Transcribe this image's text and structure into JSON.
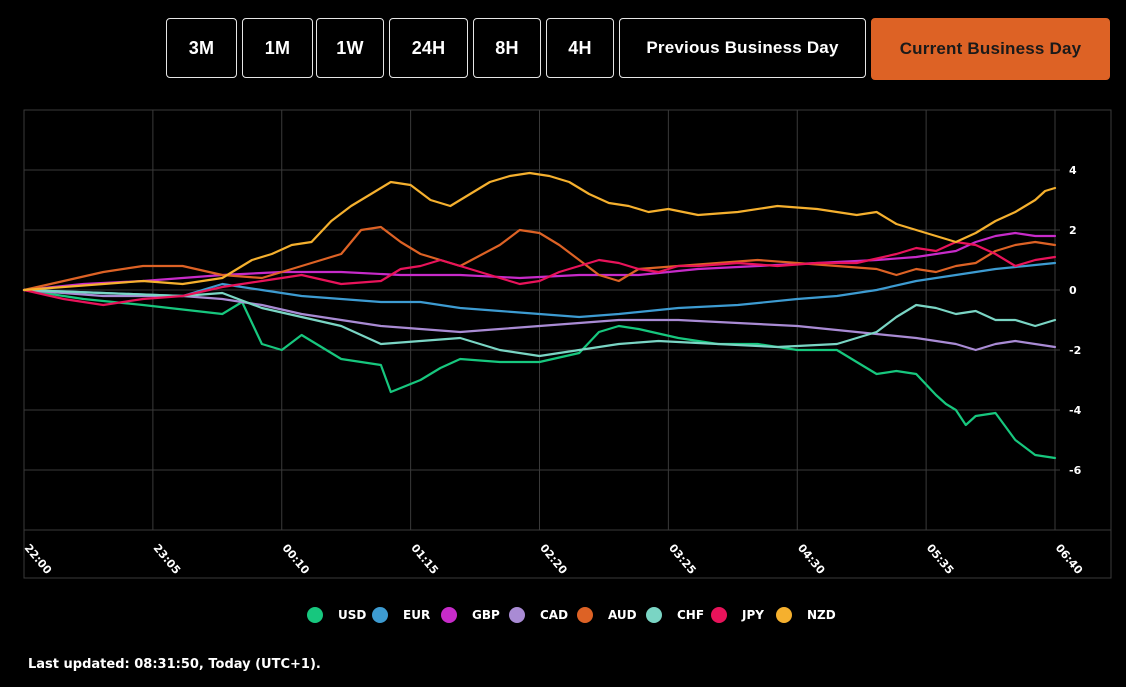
{
  "toolbar": {
    "buttons": [
      {
        "label": "3M",
        "active": false
      },
      {
        "label": "1M",
        "active": false
      },
      {
        "label": "1W",
        "active": false
      },
      {
        "label": "24H",
        "active": false
      },
      {
        "label": "8H",
        "active": false
      },
      {
        "label": "4H",
        "active": false
      },
      {
        "label": "Previous Business Day",
        "active": false
      },
      {
        "label": "Current Business Day",
        "active": true
      }
    ]
  },
  "footer": {
    "last_updated": "Last updated: 08:31:50, Today (UTC+1)."
  },
  "colors": {
    "background": "#000000",
    "grid": "#3a3a3a",
    "active_button": "#dd6225"
  },
  "chart_data": {
    "type": "line",
    "title": "",
    "xlabel": "",
    "ylabel": "",
    "x_ticks": [
      "22:00",
      "23:05",
      "00:10",
      "01:15",
      "02:20",
      "03:25",
      "04:30",
      "05:35",
      "06:40"
    ],
    "x_range": [
      0,
      520
    ],
    "ylim": [
      -8,
      6
    ],
    "y_ticks": [
      4,
      2,
      0,
      -2,
      -4,
      -6
    ],
    "grid": true,
    "legend_position": "bottom",
    "series": [
      {
        "name": "USD",
        "color": "#17c77e",
        "points": [
          [
            0,
            0
          ],
          [
            30,
            -0.3
          ],
          [
            60,
            -0.5
          ],
          [
            100,
            -0.8
          ],
          [
            110,
            -0.4
          ],
          [
            120,
            -1.8
          ],
          [
            130,
            -2.0
          ],
          [
            140,
            -1.5
          ],
          [
            160,
            -2.3
          ],
          [
            170,
            -2.4
          ],
          [
            180,
            -2.5
          ],
          [
            185,
            -3.4
          ],
          [
            200,
            -3.0
          ],
          [
            210,
            -2.6
          ],
          [
            220,
            -2.3
          ],
          [
            240,
            -2.4
          ],
          [
            260,
            -2.4
          ],
          [
            280,
            -2.1
          ],
          [
            290,
            -1.4
          ],
          [
            300,
            -1.2
          ],
          [
            310,
            -1.3
          ],
          [
            330,
            -1.6
          ],
          [
            350,
            -1.8
          ],
          [
            370,
            -1.8
          ],
          [
            390,
            -2.0
          ],
          [
            410,
            -2.0
          ],
          [
            420,
            -2.4
          ],
          [
            430,
            -2.8
          ],
          [
            440,
            -2.7
          ],
          [
            450,
            -2.8
          ],
          [
            460,
            -3.5
          ],
          [
            465,
            -3.8
          ],
          [
            470,
            -4.0
          ],
          [
            475,
            -4.5
          ],
          [
            480,
            -4.2
          ],
          [
            490,
            -4.1
          ],
          [
            500,
            -5.0
          ],
          [
            510,
            -5.5
          ],
          [
            520,
            -5.6
          ]
        ]
      },
      {
        "name": "EUR",
        "color": "#3d9bd1",
        "points": [
          [
            0,
            0
          ],
          [
            40,
            -0.1
          ],
          [
            80,
            -0.2
          ],
          [
            100,
            0.2
          ],
          [
            120,
            0.0
          ],
          [
            140,
            -0.2
          ],
          [
            160,
            -0.3
          ],
          [
            180,
            -0.4
          ],
          [
            200,
            -0.4
          ],
          [
            220,
            -0.6
          ],
          [
            240,
            -0.7
          ],
          [
            260,
            -0.8
          ],
          [
            280,
            -0.9
          ],
          [
            300,
            -0.8
          ],
          [
            330,
            -0.6
          ],
          [
            360,
            -0.5
          ],
          [
            390,
            -0.3
          ],
          [
            410,
            -0.2
          ],
          [
            430,
            0.0
          ],
          [
            450,
            0.3
          ],
          [
            470,
            0.5
          ],
          [
            490,
            0.7
          ],
          [
            505,
            0.8
          ],
          [
            520,
            0.9
          ]
        ]
      },
      {
        "name": "GBP",
        "color": "#c72bc9",
        "points": [
          [
            0,
            0
          ],
          [
            30,
            0.2
          ],
          [
            60,
            0.3
          ],
          [
            100,
            0.5
          ],
          [
            130,
            0.6
          ],
          [
            160,
            0.6
          ],
          [
            190,
            0.5
          ],
          [
            220,
            0.5
          ],
          [
            250,
            0.4
          ],
          [
            280,
            0.5
          ],
          [
            310,
            0.5
          ],
          [
            340,
            0.7
          ],
          [
            370,
            0.8
          ],
          [
            400,
            0.9
          ],
          [
            430,
            1.0
          ],
          [
            450,
            1.1
          ],
          [
            470,
            1.3
          ],
          [
            480,
            1.6
          ],
          [
            490,
            1.8
          ],
          [
            500,
            1.9
          ],
          [
            510,
            1.8
          ],
          [
            520,
            1.8
          ]
        ]
      },
      {
        "name": "CAD",
        "color": "#a98bd4",
        "points": [
          [
            0,
            0
          ],
          [
            40,
            -0.2
          ],
          [
            80,
            -0.2
          ],
          [
            100,
            -0.3
          ],
          [
            120,
            -0.5
          ],
          [
            140,
            -0.8
          ],
          [
            160,
            -1.0
          ],
          [
            180,
            -1.2
          ],
          [
            200,
            -1.3
          ],
          [
            220,
            -1.4
          ],
          [
            240,
            -1.3
          ],
          [
            260,
            -1.2
          ],
          [
            280,
            -1.1
          ],
          [
            300,
            -1.0
          ],
          [
            330,
            -1.0
          ],
          [
            360,
            -1.1
          ],
          [
            390,
            -1.2
          ],
          [
            420,
            -1.4
          ],
          [
            450,
            -1.6
          ],
          [
            470,
            -1.8
          ],
          [
            480,
            -2.0
          ],
          [
            490,
            -1.8
          ],
          [
            500,
            -1.7
          ],
          [
            520,
            -1.9
          ]
        ]
      },
      {
        "name": "AUD",
        "color": "#dd6225",
        "points": [
          [
            0,
            0
          ],
          [
            20,
            0.3
          ],
          [
            40,
            0.6
          ],
          [
            60,
            0.8
          ],
          [
            80,
            0.8
          ],
          [
            100,
            0.5
          ],
          [
            120,
            0.4
          ],
          [
            140,
            0.8
          ],
          [
            160,
            1.2
          ],
          [
            170,
            2.0
          ],
          [
            180,
            2.1
          ],
          [
            190,
            1.6
          ],
          [
            200,
            1.2
          ],
          [
            220,
            0.8
          ],
          [
            240,
            1.5
          ],
          [
            250,
            2.0
          ],
          [
            260,
            1.9
          ],
          [
            270,
            1.5
          ],
          [
            280,
            1.0
          ],
          [
            290,
            0.5
          ],
          [
            300,
            0.3
          ],
          [
            310,
            0.7
          ],
          [
            330,
            0.8
          ],
          [
            350,
            0.9
          ],
          [
            370,
            1.0
          ],
          [
            390,
            0.9
          ],
          [
            410,
            0.8
          ],
          [
            430,
            0.7
          ],
          [
            440,
            0.5
          ],
          [
            450,
            0.7
          ],
          [
            460,
            0.6
          ],
          [
            470,
            0.8
          ],
          [
            480,
            0.9
          ],
          [
            490,
            1.3
          ],
          [
            500,
            1.5
          ],
          [
            510,
            1.6
          ],
          [
            520,
            1.5
          ]
        ]
      },
      {
        "name": "CHF",
        "color": "#7ad5c4",
        "points": [
          [
            0,
            0
          ],
          [
            40,
            -0.1
          ],
          [
            80,
            -0.2
          ],
          [
            100,
            -0.1
          ],
          [
            120,
            -0.6
          ],
          [
            140,
            -0.9
          ],
          [
            160,
            -1.2
          ],
          [
            180,
            -1.8
          ],
          [
            200,
            -1.7
          ],
          [
            220,
            -1.6
          ],
          [
            240,
            -2.0
          ],
          [
            260,
            -2.2
          ],
          [
            280,
            -2.0
          ],
          [
            300,
            -1.8
          ],
          [
            320,
            -1.7
          ],
          [
            350,
            -1.8
          ],
          [
            380,
            -1.9
          ],
          [
            410,
            -1.8
          ],
          [
            430,
            -1.4
          ],
          [
            440,
            -0.9
          ],
          [
            450,
            -0.5
          ],
          [
            460,
            -0.6
          ],
          [
            470,
            -0.8
          ],
          [
            480,
            -0.7
          ],
          [
            490,
            -1.0
          ],
          [
            500,
            -1.0
          ],
          [
            510,
            -1.2
          ],
          [
            520,
            -1.0
          ]
        ]
      },
      {
        "name": "JPY",
        "color": "#e8135a",
        "points": [
          [
            0,
            0
          ],
          [
            20,
            -0.3
          ],
          [
            40,
            -0.5
          ],
          [
            60,
            -0.3
          ],
          [
            80,
            -0.2
          ],
          [
            100,
            0.1
          ],
          [
            120,
            0.3
          ],
          [
            140,
            0.5
          ],
          [
            160,
            0.2
          ],
          [
            180,
            0.3
          ],
          [
            190,
            0.7
          ],
          [
            200,
            0.8
          ],
          [
            210,
            1.0
          ],
          [
            220,
            0.8
          ],
          [
            230,
            0.6
          ],
          [
            240,
            0.4
          ],
          [
            250,
            0.2
          ],
          [
            260,
            0.3
          ],
          [
            270,
            0.6
          ],
          [
            280,
            0.8
          ],
          [
            290,
            1.0
          ],
          [
            300,
            0.9
          ],
          [
            310,
            0.7
          ],
          [
            320,
            0.6
          ],
          [
            330,
            0.8
          ],
          [
            340,
            0.8
          ],
          [
            360,
            0.9
          ],
          [
            380,
            0.8
          ],
          [
            400,
            0.9
          ],
          [
            420,
            0.9
          ],
          [
            440,
            1.2
          ],
          [
            450,
            1.4
          ],
          [
            460,
            1.3
          ],
          [
            470,
            1.6
          ],
          [
            480,
            1.5
          ],
          [
            490,
            1.2
          ],
          [
            500,
            0.8
          ],
          [
            510,
            1.0
          ],
          [
            520,
            1.1
          ]
        ]
      },
      {
        "name": "NZD",
        "color": "#f5b02e",
        "points": [
          [
            0,
            0
          ],
          [
            20,
            0.1
          ],
          [
            40,
            0.2
          ],
          [
            60,
            0.3
          ],
          [
            80,
            0.2
          ],
          [
            100,
            0.4
          ],
          [
            115,
            1.0
          ],
          [
            125,
            1.2
          ],
          [
            135,
            1.5
          ],
          [
            145,
            1.6
          ],
          [
            155,
            2.3
          ],
          [
            165,
            2.8
          ],
          [
            175,
            3.2
          ],
          [
            185,
            3.6
          ],
          [
            195,
            3.5
          ],
          [
            205,
            3.0
          ],
          [
            215,
            2.8
          ],
          [
            225,
            3.2
          ],
          [
            235,
            3.6
          ],
          [
            245,
            3.8
          ],
          [
            255,
            3.9
          ],
          [
            265,
            3.8
          ],
          [
            275,
            3.6
          ],
          [
            285,
            3.2
          ],
          [
            295,
            2.9
          ],
          [
            305,
            2.8
          ],
          [
            315,
            2.6
          ],
          [
            325,
            2.7
          ],
          [
            340,
            2.5
          ],
          [
            360,
            2.6
          ],
          [
            380,
            2.8
          ],
          [
            400,
            2.7
          ],
          [
            420,
            2.5
          ],
          [
            430,
            2.6
          ],
          [
            440,
            2.2
          ],
          [
            450,
            2.0
          ],
          [
            460,
            1.8
          ],
          [
            470,
            1.6
          ],
          [
            480,
            1.9
          ],
          [
            490,
            2.3
          ],
          [
            500,
            2.6
          ],
          [
            510,
            3.0
          ],
          [
            515,
            3.3
          ],
          [
            520,
            3.4
          ]
        ]
      }
    ]
  }
}
